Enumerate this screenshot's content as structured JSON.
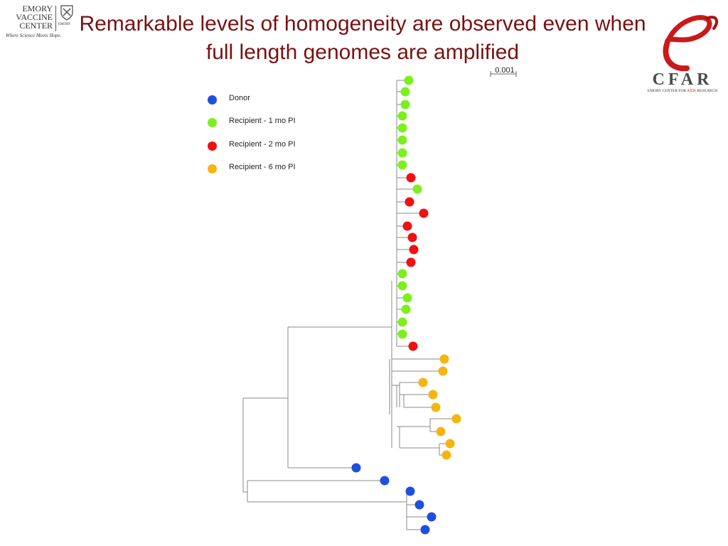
{
  "title": "Remarkable levels of homogeneity are observed even when full length genomes are amplified",
  "logos": {
    "left": {
      "lines": [
        "EMORY",
        "VACCINE",
        "CENTER"
      ],
      "tagline": "Where Science Meets Hope.",
      "affiliation": "EMORY"
    },
    "right": {
      "wordmark": "CFAR",
      "subtitle_before": "EMORY CENTER FOR ",
      "subtitle_aids": "AIDS",
      "subtitle_after": " RESEARCH"
    }
  },
  "legend": [
    {
      "label": "Donor",
      "color": "#1e4fe0"
    },
    {
      "label": "Recipient  - 1 mo PI",
      "color": "#7cf01e"
    },
    {
      "label": "Recipient  - 2 mo PI",
      "color": "#ee1111"
    },
    {
      "label": "Recipient  - 6 mo PI",
      "color": "#f5b511"
    }
  ],
  "scale_bar": {
    "label": "0.001",
    "value": 0.001
  },
  "tree": {
    "leaf_groups": {
      "donor": "#1e4fe0",
      "r1": "#7cf01e",
      "r2": "#ee1111",
      "r6": "#f5b511"
    },
    "leaves_in_order": [
      "r1",
      "r1",
      "r1",
      "r1",
      "r1",
      "r1",
      "r1",
      "r1",
      "r2",
      "r1",
      "r2",
      "r2",
      "r2",
      "r2",
      "r2",
      "r2",
      "r1",
      "r1",
      "r1",
      "r1",
      "r1",
      "r1",
      "r2",
      "r6",
      "r6",
      "r6",
      "r6",
      "r6",
      "r6",
      "r6",
      "r6",
      "r6",
      "donor",
      "donor",
      "donor",
      "donor",
      "donor",
      "donor"
    ]
  }
}
